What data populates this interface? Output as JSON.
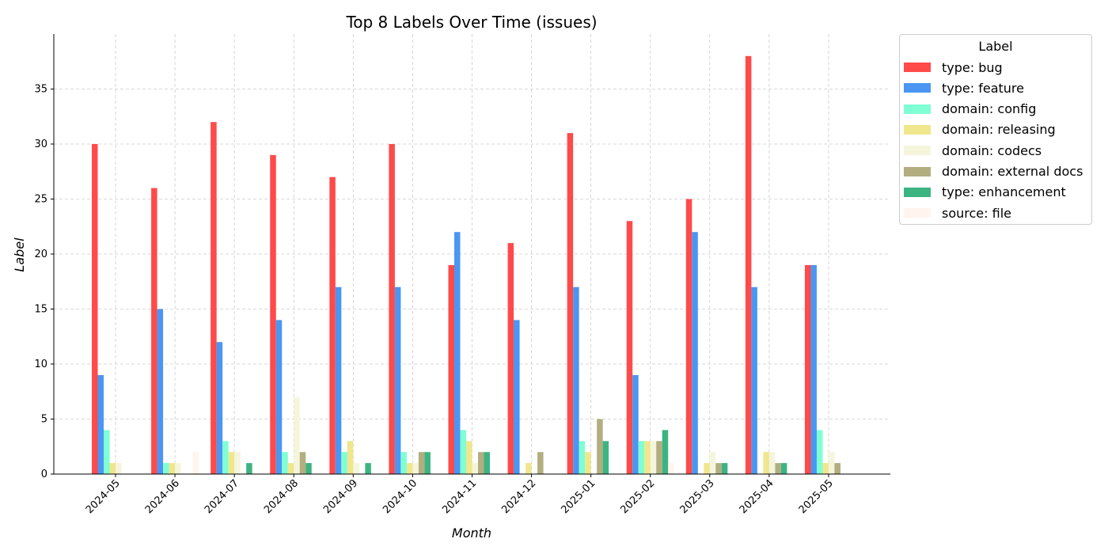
{
  "chart_data": {
    "type": "bar",
    "title": "Top 8 Labels Over Time (issues)",
    "xlabel": "Month",
    "ylabel": "Label",
    "ylim": [
      0,
      40
    ],
    "yticks": [
      0,
      5,
      10,
      15,
      20,
      25,
      30,
      35
    ],
    "grid": true,
    "legend_title": "Label",
    "legend_position": "outside-top-right",
    "categories": [
      "2024-05",
      "2024-06",
      "2024-07",
      "2024-08",
      "2024-09",
      "2024-10",
      "2024-11",
      "2024-12",
      "2025-01",
      "2025-02",
      "2025-03",
      "2025-04",
      "2025-05"
    ],
    "series": [
      {
        "name": "type: bug",
        "color": "#ff4a4a",
        "values": [
          30,
          26,
          32,
          29,
          27,
          30,
          19,
          21,
          31,
          23,
          25,
          38,
          19
        ]
      },
      {
        "name": "type: feature",
        "color": "#4a96f2",
        "values": [
          9,
          15,
          12,
          14,
          17,
          17,
          22,
          14,
          17,
          9,
          22,
          17,
          19
        ]
      },
      {
        "name": "domain: config",
        "color": "#7fffd4",
        "values": [
          4,
          1,
          3,
          2,
          2,
          2,
          4,
          0,
          3,
          3,
          0,
          0,
          4
        ]
      },
      {
        "name": "domain: releasing",
        "color": "#f0e68c",
        "values": [
          1,
          1,
          2,
          1,
          3,
          1,
          3,
          1,
          2,
          3,
          1,
          2,
          1
        ]
      },
      {
        "name": "domain: codecs",
        "color": "#f5f5dc",
        "values": [
          1,
          1,
          2,
          7,
          1,
          1,
          1,
          0,
          0,
          3,
          2,
          2,
          2
        ]
      },
      {
        "name": "domain: external docs",
        "color": "#b2ae80",
        "values": [
          0,
          0,
          0,
          2,
          0,
          2,
          2,
          2,
          5,
          3,
          1,
          1,
          1
        ]
      },
      {
        "name": "type: enhancement",
        "color": "#3cb482",
        "values": [
          0,
          0,
          1,
          1,
          1,
          2,
          2,
          0,
          3,
          4,
          1,
          1,
          0
        ]
      },
      {
        "name": "source: file",
        "color": "#fff5ee",
        "values": [
          0,
          2,
          0,
          0,
          0,
          0,
          0,
          0,
          0,
          1,
          0,
          0,
          0
        ]
      }
    ]
  }
}
